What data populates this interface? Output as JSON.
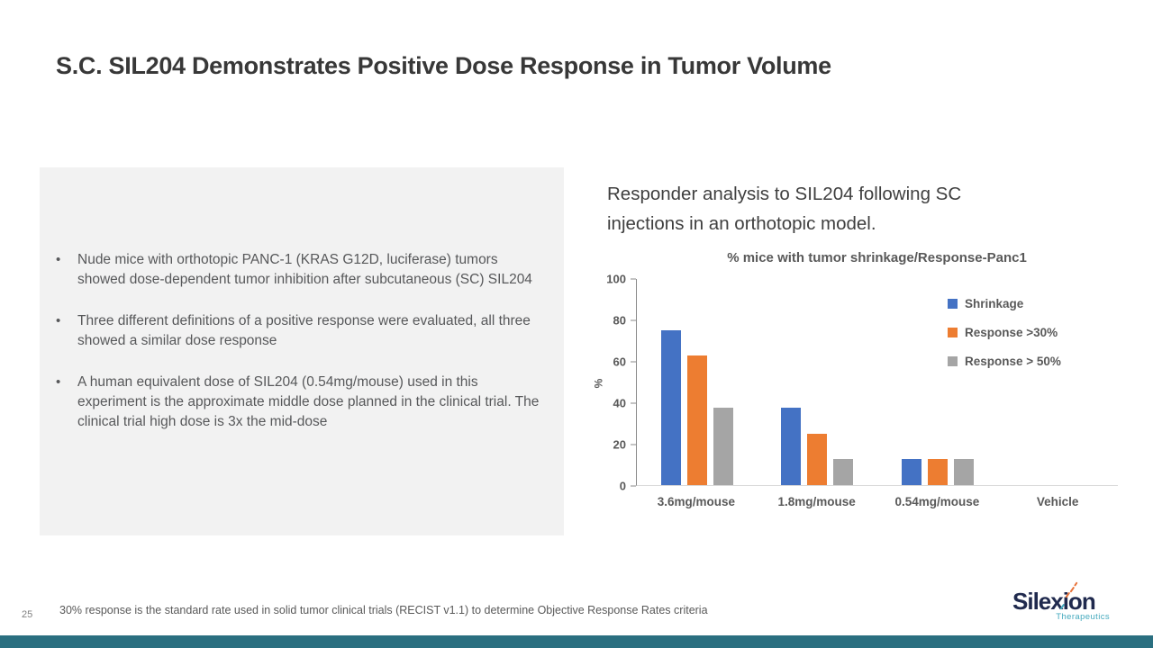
{
  "slide": {
    "title": "S.C. SIL204 Demonstrates Positive Dose Response in Tumor Volume",
    "bullets": [
      "Nude mice with orthotopic PANC-1 (KRAS G12D, luciferase) tumors showed dose-dependent tumor inhibition after subcutaneous (SC) SIL204",
      "Three different definitions of a positive response were evaluated, all three showed a similar dose response",
      "A human equivalent dose of SIL204 (0.54mg/mouse) used in this experiment is the approximate middle dose planned in the clinical trial.  The clinical trial high dose is 3x the mid-dose"
    ],
    "responder_caption": "Responder analysis to SIL204 following SC injections in an orthotopic model.",
    "footnote": "30% response is the standard rate used in solid tumor clinical trials (RECIST v1.1) to determine Objective Response Rates criteria",
    "page_number": "25",
    "logo": {
      "wordmark": "Silexion",
      "tagline": "Therapeutics"
    },
    "colors": {
      "bullet_box_bg": "#f2f2f2",
      "bottom_bar_teal": "#2a6f80",
      "logo_navy": "#202a4e",
      "logo_teal": "#43a9bd",
      "logo_orange": "#e8743c"
    }
  },
  "chart_data": {
    "type": "bar",
    "title": "% mice with tumor shrinkage/Response-Panc1",
    "categories": [
      "3.6mg/mouse",
      "1.8mg/mouse",
      "0.54mg/mouse",
      "Vehicle"
    ],
    "series": [
      {
        "name": "Shrinkage",
        "color": "#4472C4",
        "values": [
          75,
          37.5,
          12.5,
          0
        ]
      },
      {
        "name": "Response >30%",
        "color": "#ED7D31",
        "values": [
          62.5,
          25,
          12.5,
          0
        ]
      },
      {
        "name": "Response > 50%",
        "color": "#A5A5A5",
        "values": [
          37.5,
          12.5,
          12.5,
          0
        ]
      }
    ],
    "xlabel": "",
    "ylabel": "%",
    "ylim": [
      0,
      100
    ],
    "yticks": [
      0,
      20,
      40,
      60,
      80,
      100
    ],
    "grid": false,
    "legend_position": "right-inside"
  }
}
